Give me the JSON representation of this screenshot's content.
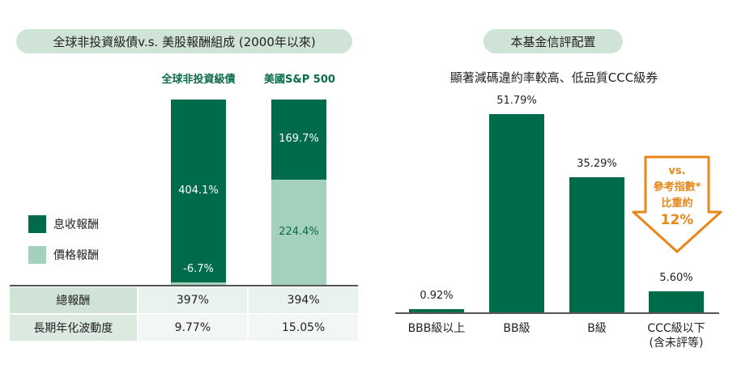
{
  "left": {
    "title": "全球非投資級債v.s. 美股報酬組成 (2000年以來)",
    "col_headers": [
      "全球非投資級債",
      "美國S&P 500"
    ],
    "legend": [
      {
        "label": "息收報酬",
        "color": "#006b4a"
      },
      {
        "label": "價格報酬",
        "color": "#a3d1bb"
      }
    ],
    "chart_data": {
      "type": "bar",
      "stacked": true,
      "categories": [
        "全球非投資級債",
        "美國S&P 500"
      ],
      "series": [
        {
          "name": "息收報酬",
          "values": [
            404.1,
            169.7
          ],
          "labels": [
            "404.1%",
            "169.7%"
          ],
          "color": "#006b4a"
        },
        {
          "name": "價格報酬",
          "values": [
            -6.7,
            224.4
          ],
          "labels": [
            "-6.7%",
            "224.4%"
          ],
          "color": "#a3d1bb"
        }
      ]
    },
    "table": [
      {
        "label": "總報酬",
        "values": [
          "397%",
          "394%"
        ]
      },
      {
        "label": "長期年化波動度",
        "values": [
          "9.77%",
          "15.05%"
        ]
      }
    ]
  },
  "right": {
    "title": "本基金信評配置",
    "subtitle": "顯著減碼違約率較高、低品質CCC級券",
    "chart_data": {
      "type": "bar",
      "categories": [
        "BBB級以上",
        "BB級",
        "B級",
        "CCC級以下\n(含未評等)"
      ],
      "values": [
        0.92,
        51.79,
        35.29,
        5.6
      ],
      "labels": [
        "0.92%",
        "51.79%",
        "35.29%",
        "5.60%"
      ],
      "color": "#006b4a"
    },
    "category_lines": [
      [
        "BBB級以上"
      ],
      [
        "BB級"
      ],
      [
        "B級"
      ],
      [
        "CCC級以下",
        "(含未評等)"
      ]
    ],
    "callout": {
      "lines": [
        "vs.",
        "參考指數*",
        "比重約",
        "12%"
      ],
      "color": "#e8861a"
    }
  }
}
